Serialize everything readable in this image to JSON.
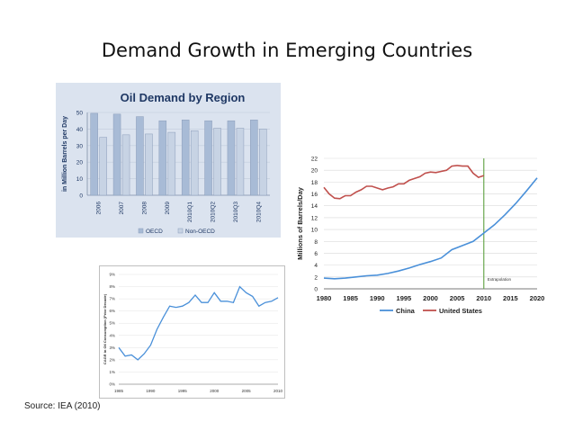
{
  "slide": {
    "title": "Demand Growth in Emerging Countries",
    "source": "Source: IEA (2010)"
  },
  "chart_data": [
    {
      "id": "oil-demand-by-region",
      "type": "bar",
      "title": "Oil Demand by Region",
      "ylabel": "in Million Barrels per Day",
      "xlabel": "",
      "categories": [
        "2006",
        "2007",
        "2008",
        "2009",
        "2010Q1",
        "2010Q2",
        "2010Q3",
        "2010Q4"
      ],
      "series": [
        {
          "name": "OECD",
          "values": [
            49.5,
            49,
            47.5,
            45,
            45.5,
            45,
            45,
            45.5
          ],
          "color": "#a8bbd6"
        },
        {
          "name": "Non-OECD",
          "values": [
            35,
            36.5,
            37,
            38,
            39,
            40.5,
            40.5,
            40
          ],
          "color": "#c7d3e4"
        }
      ],
      "ylim": [
        0,
        50
      ],
      "yticks": [
        "0",
        "10",
        "20",
        "30",
        "40",
        "50"
      ],
      "background": "#dbe3ef",
      "legend": "bottom"
    },
    {
      "id": "china-vs-us",
      "type": "line",
      "title": "",
      "ylabel": "Millions of Barrels/Day",
      "xlabel": "",
      "xlim": [
        1980,
        2020
      ],
      "ylim": [
        0,
        22
      ],
      "xticks": [
        "1980",
        "1985",
        "1990",
        "1995",
        "2000",
        "2005",
        "2010",
        "2015",
        "2020"
      ],
      "yticks": [
        "0",
        "2",
        "4",
        "6",
        "8",
        "10",
        "12",
        "14",
        "16",
        "18",
        "20",
        "22"
      ],
      "series": [
        {
          "name": "China",
          "color": "#4a90d9",
          "x": [
            1980,
            1982,
            1984,
            1986,
            1988,
            1990,
            1992,
            1994,
            1996,
            1998,
            2000,
            2002,
            2004,
            2006,
            2008,
            2010,
            2012,
            2014,
            2016,
            2018,
            2020
          ],
          "y": [
            1.8,
            1.7,
            1.8,
            2.0,
            2.2,
            2.3,
            2.6,
            3.0,
            3.5,
            4.1,
            4.6,
            5.2,
            6.6,
            7.3,
            8.0,
            9.4,
            10.8,
            12.5,
            14.4,
            16.5,
            18.7
          ]
        },
        {
          "name": "United States",
          "color": "#c0504d",
          "x": [
            1980,
            1981,
            1982,
            1983,
            1984,
            1985,
            1986,
            1987,
            1988,
            1989,
            1990,
            1991,
            1992,
            1993,
            1994,
            1995,
            1996,
            1997,
            1998,
            1999,
            2000,
            2001,
            2002,
            2003,
            2004,
            2005,
            2006,
            2007,
            2008,
            2009,
            2010
          ],
          "y": [
            17.1,
            16.0,
            15.3,
            15.2,
            15.7,
            15.7,
            16.3,
            16.7,
            17.3,
            17.3,
            17.0,
            16.7,
            17.0,
            17.2,
            17.7,
            17.7,
            18.3,
            18.6,
            18.9,
            19.5,
            19.7,
            19.6,
            19.8,
            20.0,
            20.7,
            20.8,
            20.7,
            20.7,
            19.5,
            18.8,
            19.1
          ]
        }
      ],
      "annotation": {
        "label": "Extrapolation",
        "x": 2010,
        "color": "#6aa84f"
      },
      "legend": "bottom"
    },
    {
      "id": "cagr-oil-consumption",
      "type": "line",
      "title": "",
      "ylabel": "CAGR in Oil Consumption (Prior Decade)",
      "xlabel": "",
      "xlim": [
        1985,
        2010
      ],
      "ylim": [
        0,
        9
      ],
      "xticks": [
        "1985",
        "1990",
        "1995",
        "2000",
        "2005",
        "2010"
      ],
      "yticks": [
        "0%",
        "1%",
        "2%",
        "3%",
        "4%",
        "5%",
        "6%",
        "7%",
        "8%",
        "9%"
      ],
      "series": [
        {
          "name": "",
          "color": "#4a90d9",
          "x": [
            1985,
            1986,
            1987,
            1988,
            1989,
            1990,
            1991,
            1992,
            1993,
            1994,
            1995,
            1996,
            1997,
            1998,
            1999,
            2000,
            2001,
            2002,
            2003,
            2004,
            2005,
            2006,
            2007,
            2008,
            2009,
            2010
          ],
          "y": [
            3.0,
            2.3,
            2.4,
            2.0,
            2.5,
            3.2,
            4.5,
            5.5,
            6.4,
            6.3,
            6.4,
            6.7,
            7.3,
            6.7,
            6.7,
            7.5,
            6.8,
            6.8,
            6.7,
            8.0,
            7.5,
            7.2,
            6.4,
            6.7,
            6.8,
            7.1
          ]
        }
      ]
    }
  ]
}
